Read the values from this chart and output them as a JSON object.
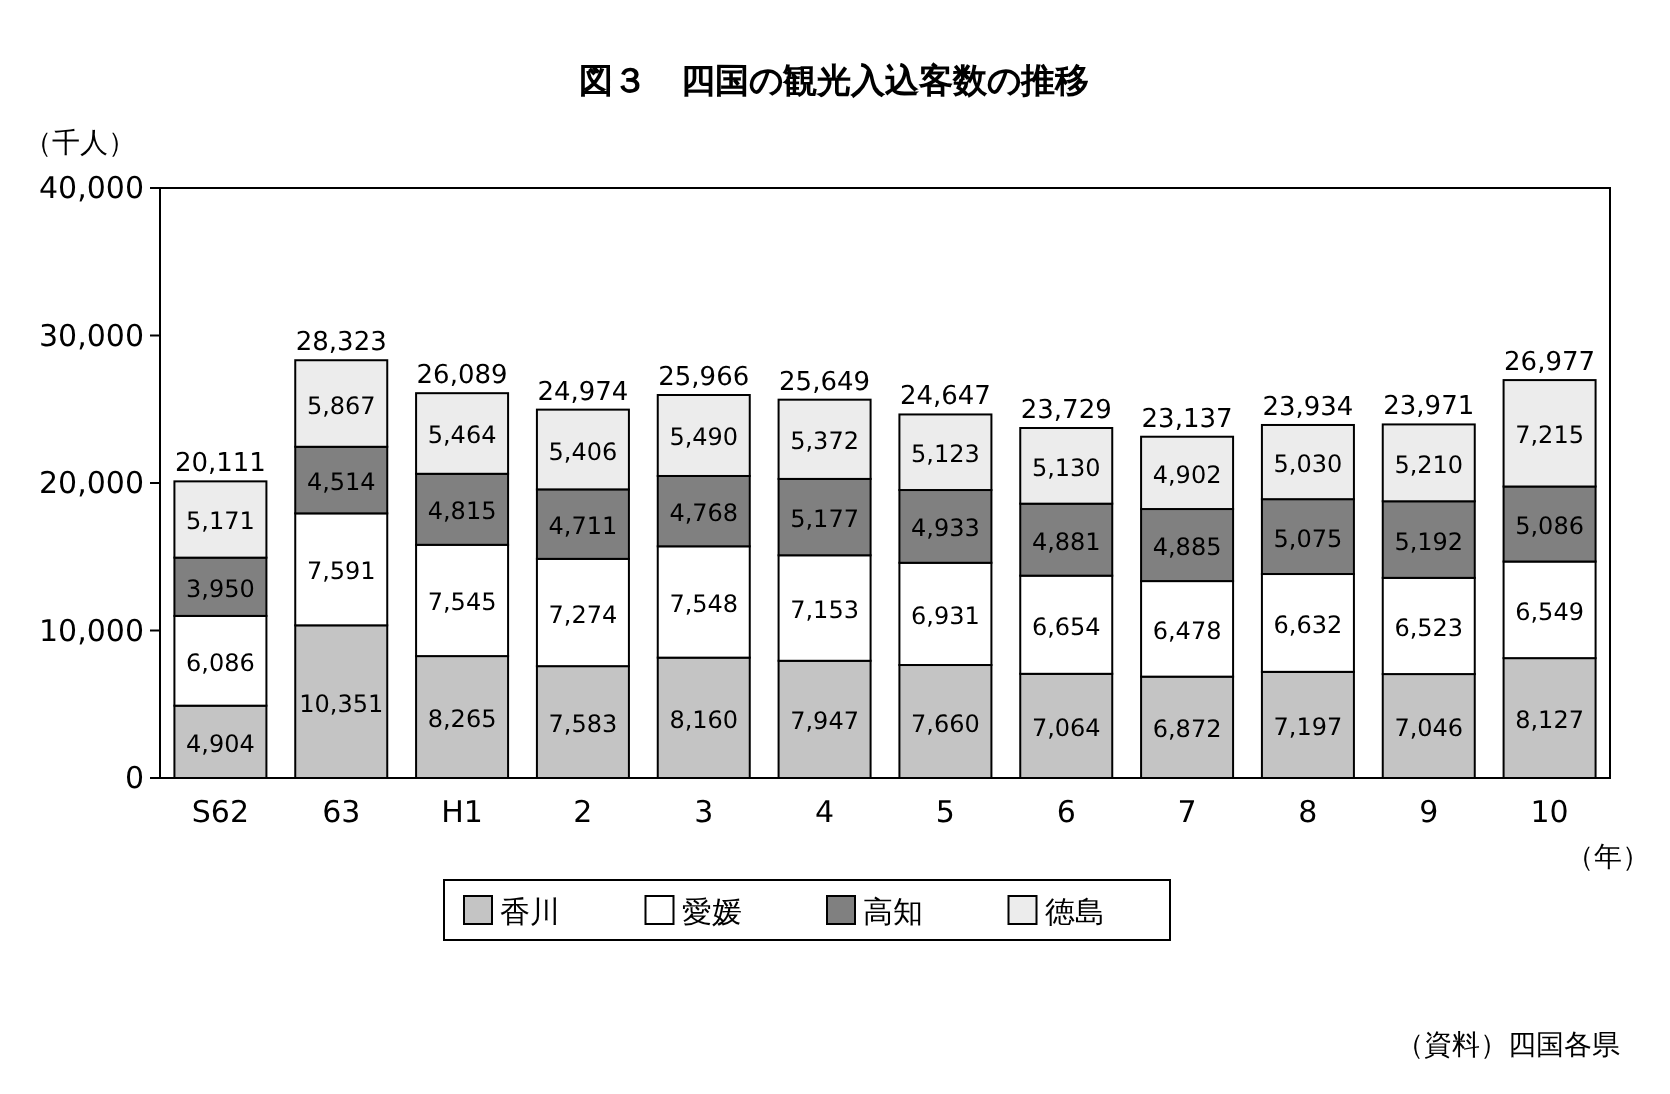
{
  "chart_data": {
    "type": "bar",
    "stacked": true,
    "title": "図３　四国の観光入込客数の推移",
    "ylabel": "（千人）",
    "xlabel": "（年）",
    "categories": [
      "S62",
      "63",
      "H1",
      "2",
      "3",
      "4",
      "5",
      "6",
      "7",
      "8",
      "9",
      "10"
    ],
    "series": [
      {
        "name": "香川",
        "color": "#c4c4c4",
        "values": [
          4904,
          10351,
          8265,
          7583,
          8160,
          7947,
          7660,
          7064,
          6872,
          7197,
          7046,
          8127
        ],
        "value_labels": [
          "4,904",
          "10,351",
          "8,265",
          "7,583",
          "8,160",
          "7,947",
          "7,660",
          "7,064",
          "6,872",
          "7,197",
          "7,046",
          "8,127"
        ]
      },
      {
        "name": "愛媛",
        "color": "#ffffff",
        "values": [
          6086,
          7591,
          7545,
          7274,
          7548,
          7153,
          6931,
          6654,
          6478,
          6632,
          6523,
          6549
        ],
        "value_labels": [
          "6,086",
          "7,591",
          "7,545",
          "7,274",
          "7,548",
          "7,153",
          "6,931",
          "6,654",
          "6,478",
          "6,632",
          "6,523",
          "6,549"
        ]
      },
      {
        "name": "高知",
        "color": "#808080",
        "values": [
          3950,
          4514,
          4815,
          4711,
          4768,
          5177,
          4933,
          4881,
          4885,
          5075,
          5192,
          5086
        ],
        "value_labels": [
          "3,950",
          "4,514",
          "4,815",
          "4,711",
          "4,768",
          "5,177",
          "4,933",
          "4,881",
          "4,885",
          "5,075",
          "5,192",
          "5,086"
        ]
      },
      {
        "name": "徳島",
        "color": "#ececec",
        "values": [
          5171,
          5867,
          5464,
          5406,
          5490,
          5372,
          5123,
          5130,
          4902,
          5030,
          5210,
          7215
        ],
        "value_labels": [
          "5,171",
          "5,867",
          "5,464",
          "5,406",
          "5,490",
          "5,372",
          "5,123",
          "5,130",
          "4,902",
          "5,030",
          "5,210",
          "7,215"
        ]
      }
    ],
    "totals": [
      "20,111",
      "28,323",
      "26,089",
      "24,974",
      "25,966",
      "25,649",
      "24,647",
      "23,729",
      "23,137",
      "23,934",
      "23,971",
      "26,977"
    ],
    "ylim": [
      0,
      40000
    ],
    "yticks": [
      {
        "value": 0,
        "label": "0"
      },
      {
        "value": 10000,
        "label": "10,000"
      },
      {
        "value": 20000,
        "label": "20,000"
      },
      {
        "value": 30000,
        "label": "30,000"
      },
      {
        "value": 40000,
        "label": "40,000"
      }
    ],
    "legend": "bottom",
    "annotations": [
      "（資料）四国各県"
    ]
  }
}
